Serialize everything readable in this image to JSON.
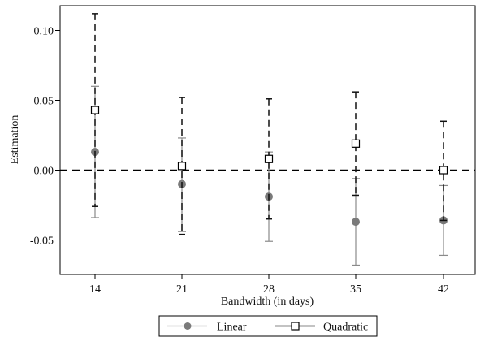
{
  "chart_data": {
    "type": "scatter",
    "title": "",
    "xlabel": "Bandwidth (in days)",
    "ylabel": "Estimation",
    "categories": [
      "14",
      "21",
      "28",
      "35",
      "42"
    ],
    "ylim": [
      -0.075,
      0.12
    ],
    "yticks": [
      "0.10",
      "0.05",
      "0.00",
      "-0.05"
    ],
    "ytick_values": [
      0.1,
      0.05,
      0.0,
      -0.05
    ],
    "reference_line": 0.0,
    "grid": false,
    "legend_position": "bottom",
    "series": [
      {
        "name": "Linear",
        "marker": "filled-circle",
        "line_style": "solid",
        "color": "#808080",
        "values": [
          0.013,
          -0.01,
          -0.019,
          -0.037,
          -0.036
        ],
        "ci_low": [
          -0.034,
          -0.044,
          -0.051,
          -0.068,
          -0.061
        ],
        "ci_high": [
          0.06,
          0.023,
          0.013,
          -0.006,
          -0.011
        ]
      },
      {
        "name": "Quadratic",
        "marker": "hollow-square",
        "line_style": "dashed",
        "color": "#000000",
        "values": [
          0.043,
          0.003,
          0.008,
          0.019,
          0.0
        ],
        "ci_low": [
          -0.026,
          -0.046,
          -0.035,
          -0.018,
          -0.036
        ],
        "ci_high": [
          0.112,
          0.052,
          0.051,
          0.056,
          0.035
        ]
      }
    ]
  }
}
